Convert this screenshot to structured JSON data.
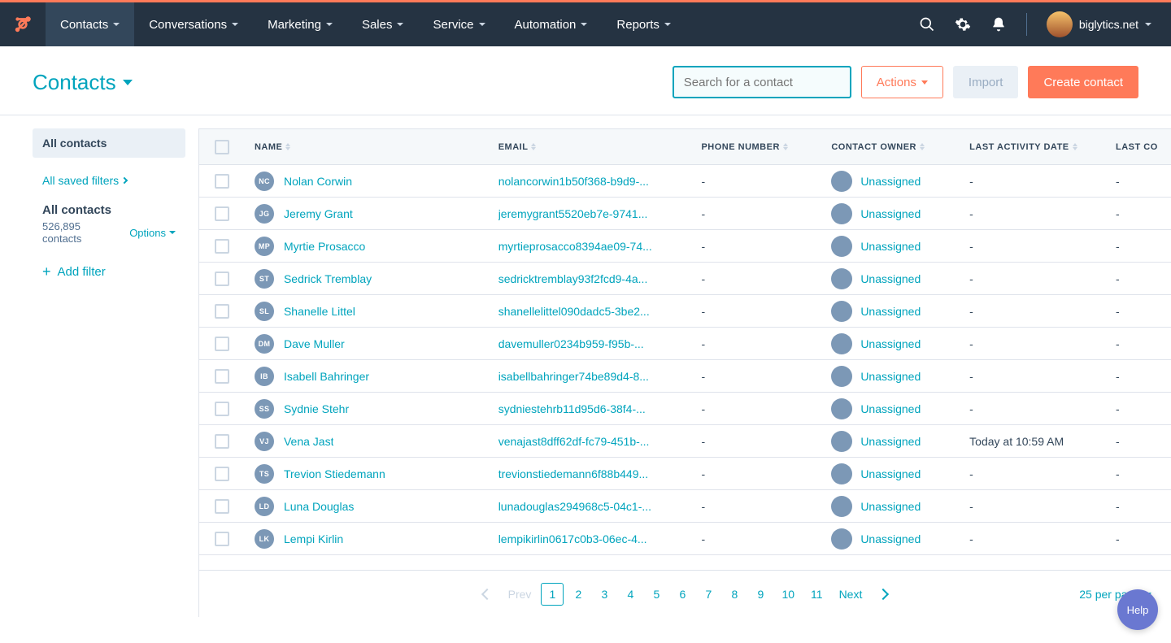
{
  "colors": {
    "accent_orange": "#ff7a59",
    "link_teal": "#00a4bd",
    "navy_bg": "#253342",
    "text_primary": "#33475b",
    "muted": "#7c98b6",
    "border": "#dfe3eb",
    "row_hover": "#f5f8fa",
    "disabled_bg": "#eaf0f6",
    "help_purple": "#6a78d1"
  },
  "nav": {
    "items": [
      {
        "label": "Contacts",
        "active": true
      },
      {
        "label": "Conversations"
      },
      {
        "label": "Marketing"
      },
      {
        "label": "Sales"
      },
      {
        "label": "Service"
      },
      {
        "label": "Automation"
      },
      {
        "label": "Reports"
      }
    ],
    "account": "biglytics.net"
  },
  "header": {
    "title": "Contacts",
    "search_placeholder": "Search for a contact",
    "actions_label": "Actions",
    "import_label": "Import",
    "create_label": "Create contact"
  },
  "sidebar": {
    "all_contacts": "All contacts",
    "saved_filters": "All saved filters",
    "filter_title": "All contacts",
    "contact_count": "526,895 contacts",
    "options_label": "Options",
    "add_filter": "Add filter"
  },
  "table": {
    "columns": [
      "NAME",
      "EMAIL",
      "PHONE NUMBER",
      "CONTACT OWNER",
      "LAST ACTIVITY DATE",
      "LAST CO"
    ],
    "rows": [
      {
        "initials": "NC",
        "name": "Nolan Corwin",
        "email": "nolancorwin1b50f368-b9d9-...",
        "phone": "-",
        "owner": "Unassigned",
        "activity": "-",
        "last": "-"
      },
      {
        "initials": "JG",
        "name": "Jeremy Grant",
        "email": "jeremygrant5520eb7e-9741...",
        "phone": "-",
        "owner": "Unassigned",
        "activity": "-",
        "last": "-"
      },
      {
        "initials": "MP",
        "name": "Myrtie Prosacco",
        "email": "myrtieprosacco8394ae09-74...",
        "phone": "-",
        "owner": "Unassigned",
        "activity": "-",
        "last": "-"
      },
      {
        "initials": "ST",
        "name": "Sedrick Tremblay",
        "email": "sedricktremblay93f2fcd9-4a...",
        "phone": "-",
        "owner": "Unassigned",
        "activity": "-",
        "last": "-"
      },
      {
        "initials": "SL",
        "name": "Shanelle Littel",
        "email": "shanellelittel090dadc5-3be2...",
        "phone": "-",
        "owner": "Unassigned",
        "activity": "-",
        "last": "-"
      },
      {
        "initials": "DM",
        "name": "Dave Muller",
        "email": "davemuller0234b959-f95b-...",
        "phone": "-",
        "owner": "Unassigned",
        "activity": "-",
        "last": "-"
      },
      {
        "initials": "IB",
        "name": "Isabell Bahringer",
        "email": "isabellbahringer74be89d4-8...",
        "phone": "-",
        "owner": "Unassigned",
        "activity": "-",
        "last": "-"
      },
      {
        "initials": "SS",
        "name": "Sydnie Stehr",
        "email": "sydniestehrb11d95d6-38f4-...",
        "phone": "-",
        "owner": "Unassigned",
        "activity": "-",
        "last": "-"
      },
      {
        "initials": "VJ",
        "name": "Vena Jast",
        "email": "venajast8dff62df-fc79-451b-...",
        "phone": "-",
        "owner": "Unassigned",
        "activity": "Today at 10:59 AM",
        "last": "-"
      },
      {
        "initials": "TS",
        "name": "Trevion Stiedemann",
        "email": "trevionstiedemann6f88b449...",
        "phone": "-",
        "owner": "Unassigned",
        "activity": "-",
        "last": "-"
      },
      {
        "initials": "LD",
        "name": "Luna Douglas",
        "email": "lunadouglas294968c5-04c1-...",
        "phone": "-",
        "owner": "Unassigned",
        "activity": "-",
        "last": "-"
      },
      {
        "initials": "LK",
        "name": "Lempi Kirlin",
        "email": "lempikirlin0617c0b3-06ec-4...",
        "phone": "-",
        "owner": "Unassigned",
        "activity": "-",
        "last": "-"
      }
    ]
  },
  "pagination": {
    "prev": "Prev",
    "next": "Next",
    "pages": [
      "1",
      "2",
      "3",
      "4",
      "5",
      "6",
      "7",
      "8",
      "9",
      "10",
      "11"
    ],
    "current": "1",
    "per_page": "25 per page"
  },
  "help": "Help"
}
